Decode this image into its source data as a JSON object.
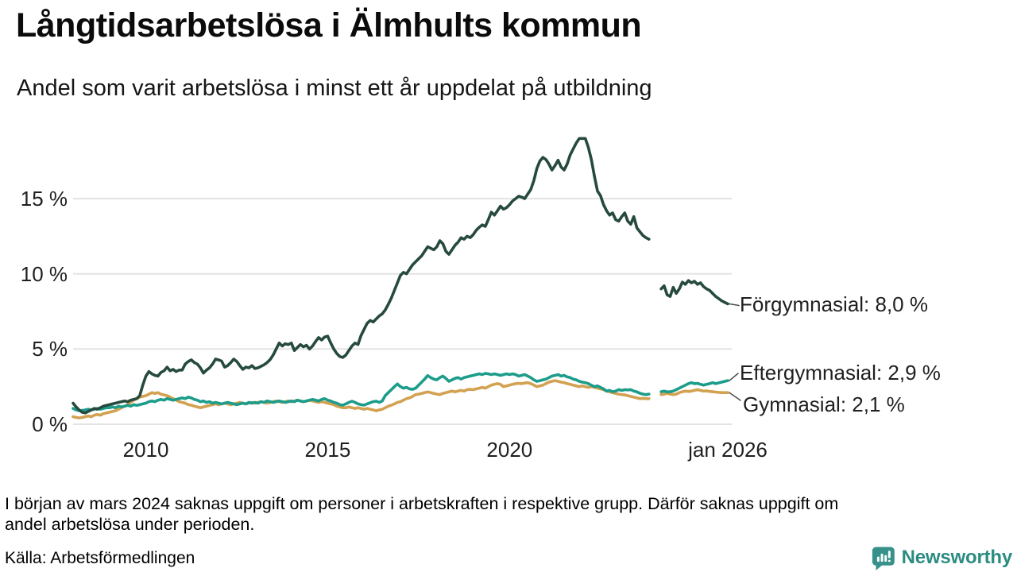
{
  "header": {
    "title": "Långtidsarbetslösa i Älmhults kommun",
    "subtitle": "Andel som varit arbetslösa i minst ett år uppdelat på utbildning"
  },
  "footnote": {
    "line1": "I början av mars 2024 saknas uppgift om personer i arbetskraften i respektive grupp. Därför saknas uppgift om",
    "line2": "andel arbetslösa under perioden."
  },
  "source": {
    "label": "Källa: Arbetsförmedlingen"
  },
  "branding": {
    "name": "Newsworthy",
    "icon": "newsworthy-speech-bubble-bar-chart-icon",
    "icon_color": "#35918a",
    "text_color": "#2b8c82"
  },
  "colors": {
    "grid": "#e3e3e3",
    "axis_text": "#1f1f1f",
    "connector": "#4d4d4d"
  },
  "chart_data": {
    "type": "line",
    "title": "Långtidsarbetslösa i Älmhults kommun",
    "subtitle": "Andel som varit arbetslösa i minst ett år uppdelat på utbildning",
    "unit": "%",
    "x_start_year": 2008.0,
    "x_end_year": 2026.0,
    "x_step_months": 1,
    "ylim": [
      0,
      19.8
    ],
    "grid": "horizontal",
    "legend_position": "right-end-labels",
    "gap_label": "missing data early 2024",
    "x_ticks": [
      {
        "year": 2010,
        "label": "2010"
      },
      {
        "year": 2015,
        "label": "2015"
      },
      {
        "year": 2020,
        "label": "2020"
      },
      {
        "year": 2026,
        "label": "jan 2026"
      }
    ],
    "y_ticks": [
      {
        "value": 0,
        "label": "0 %"
      },
      {
        "value": 5,
        "label": "5 %"
      },
      {
        "value": 10,
        "label": "10 %"
      },
      {
        "value": 15,
        "label": "15 %"
      }
    ],
    "series": [
      {
        "name": "Förgymnasial",
        "color": "#264a3e",
        "end_value": 8.0,
        "end_label": "Förgymnasial: 8,0 %",
        "values": [
          1.4,
          1.15,
          0.95,
          0.8,
          0.75,
          0.85,
          0.95,
          1.05,
          1.0,
          1.1,
          1.2,
          1.25,
          1.3,
          1.35,
          1.4,
          1.45,
          1.5,
          1.55,
          1.5,
          1.6,
          1.65,
          1.7,
          1.9,
          2.6,
          3.2,
          3.5,
          3.35,
          3.25,
          3.2,
          3.45,
          3.55,
          3.8,
          3.55,
          3.65,
          3.5,
          3.6,
          3.6,
          4.0,
          4.17,
          4.28,
          4.1,
          4.0,
          3.75,
          3.4,
          3.6,
          3.75,
          4.0,
          4.33,
          4.28,
          4.2,
          3.8,
          3.9,
          4.1,
          4.33,
          4.17,
          3.9,
          3.65,
          3.8,
          3.75,
          3.9,
          3.7,
          3.75,
          3.85,
          3.95,
          4.1,
          4.3,
          4.6,
          5.0,
          5.4,
          5.2,
          5.35,
          5.3,
          5.4,
          4.9,
          5.1,
          5.3,
          5.15,
          5.25,
          5.0,
          5.2,
          5.5,
          5.76,
          5.6,
          5.8,
          5.86,
          5.4,
          5.0,
          4.7,
          4.5,
          4.44,
          4.6,
          4.9,
          5.2,
          5.4,
          5.3,
          5.9,
          6.3,
          6.7,
          6.9,
          6.8,
          7.0,
          7.2,
          7.34,
          7.6,
          7.97,
          8.4,
          8.9,
          9.4,
          9.9,
          10.1,
          10.0,
          10.3,
          10.6,
          10.8,
          11.0,
          11.2,
          11.5,
          11.8,
          11.7,
          11.6,
          11.8,
          12.2,
          12.0,
          11.5,
          11.3,
          11.6,
          11.9,
          12.1,
          12.4,
          12.3,
          12.5,
          12.4,
          12.6,
          12.9,
          13.1,
          13.25,
          13.15,
          13.6,
          14.1,
          13.9,
          14.2,
          14.5,
          14.3,
          14.4,
          14.6,
          14.84,
          15.0,
          15.16,
          15.1,
          15.0,
          15.3,
          15.6,
          16.2,
          17.0,
          17.5,
          17.74,
          17.6,
          17.3,
          16.9,
          17.2,
          17.55,
          17.1,
          16.9,
          17.3,
          17.9,
          18.3,
          18.7,
          19.0,
          19.0,
          19.0,
          18.4,
          17.6,
          16.5,
          15.5,
          15.2,
          14.6,
          14.2,
          13.9,
          14.05,
          13.6,
          13.5,
          13.8,
          14.05,
          13.5,
          13.3,
          13.8,
          13.05,
          12.8,
          12.55,
          12.4,
          12.3,
          null,
          null,
          null,
          9.0,
          9.2,
          8.6,
          8.5,
          9.1,
          8.7,
          9.0,
          9.45,
          9.3,
          9.55,
          9.4,
          9.5,
          9.3,
          9.4,
          9.15,
          9.0,
          8.9,
          8.7,
          8.5,
          8.35,
          8.2,
          8.1,
          8.0
        ]
      },
      {
        "name": "Eftergymnasial",
        "color": "#1c9c8a",
        "end_value": 2.9,
        "end_label": "Eftergymnasial: 2,9 %",
        "values": [
          1.05,
          0.95,
          0.9,
          0.92,
          0.95,
          1.0,
          0.95,
          1.0,
          1.05,
          1.0,
          1.05,
          1.1,
          1.1,
          1.15,
          1.1,
          1.2,
          1.15,
          1.2,
          1.25,
          1.2,
          1.3,
          1.25,
          1.3,
          1.35,
          1.4,
          1.5,
          1.55,
          1.5,
          1.6,
          1.65,
          1.6,
          1.7,
          1.65,
          1.6,
          1.65,
          1.7,
          1.75,
          1.7,
          1.8,
          1.75,
          1.65,
          1.6,
          1.5,
          1.55,
          1.45,
          1.5,
          1.4,
          1.45,
          1.4,
          1.35,
          1.4,
          1.45,
          1.4,
          1.35,
          1.3,
          1.35,
          1.4,
          1.35,
          1.45,
          1.4,
          1.45,
          1.4,
          1.5,
          1.45,
          1.55,
          1.5,
          1.45,
          1.5,
          1.55,
          1.5,
          1.45,
          1.5,
          1.55,
          1.5,
          1.6,
          1.55,
          1.5,
          1.55,
          1.6,
          1.65,
          1.6,
          1.55,
          1.65,
          1.7,
          1.6,
          1.55,
          1.45,
          1.4,
          1.3,
          1.27,
          1.35,
          1.45,
          1.53,
          1.45,
          1.35,
          1.3,
          1.27,
          1.35,
          1.43,
          1.5,
          1.53,
          1.45,
          1.55,
          1.9,
          2.1,
          2.3,
          2.5,
          2.68,
          2.5,
          2.4,
          2.45,
          2.35,
          2.32,
          2.4,
          2.6,
          2.8,
          3.0,
          3.24,
          3.1,
          3.0,
          2.95,
          3.1,
          3.2,
          3.05,
          2.85,
          2.95,
          3.05,
          3.1,
          3.0,
          3.1,
          3.15,
          3.2,
          3.25,
          3.3,
          3.35,
          3.3,
          3.38,
          3.35,
          3.3,
          3.35,
          3.3,
          3.25,
          3.3,
          3.35,
          3.3,
          3.35,
          3.3,
          3.2,
          3.25,
          3.3,
          3.2,
          3.1,
          2.95,
          2.85,
          2.9,
          2.95,
          3.0,
          3.1,
          3.2,
          3.25,
          3.3,
          3.2,
          3.25,
          3.15,
          3.1,
          3.0,
          2.95,
          2.85,
          2.8,
          2.76,
          2.7,
          2.6,
          2.5,
          2.55,
          2.45,
          2.35,
          2.2,
          2.25,
          2.16,
          2.2,
          2.3,
          2.25,
          2.3,
          2.28,
          2.3,
          2.2,
          2.15,
          2.06,
          2.0,
          1.97,
          2.0,
          null,
          null,
          null,
          2.16,
          2.2,
          2.15,
          2.16,
          2.2,
          2.3,
          2.4,
          2.5,
          2.6,
          2.7,
          2.76,
          2.7,
          2.72,
          2.65,
          2.6,
          2.65,
          2.7,
          2.76,
          2.7,
          2.75,
          2.8,
          2.85,
          2.9
        ]
      },
      {
        "name": "Gymnasial",
        "color": "#d2a151",
        "end_value": 2.1,
        "end_label": "Gymnasial: 2,1 %",
        "values": [
          0.5,
          0.45,
          0.42,
          0.45,
          0.5,
          0.55,
          0.5,
          0.6,
          0.65,
          0.6,
          0.7,
          0.75,
          0.8,
          0.85,
          0.9,
          1.0,
          1.1,
          1.2,
          1.3,
          1.45,
          1.6,
          1.7,
          1.8,
          1.85,
          1.9,
          2.0,
          2.1,
          2.05,
          2.1,
          2.0,
          1.95,
          1.9,
          1.8,
          1.7,
          1.6,
          1.5,
          1.45,
          1.4,
          1.3,
          1.27,
          1.2,
          1.15,
          1.1,
          1.15,
          1.2,
          1.25,
          1.3,
          1.35,
          1.3,
          1.35,
          1.4,
          1.35,
          1.3,
          1.35,
          1.4,
          1.45,
          1.4,
          1.35,
          1.4,
          1.45,
          1.4,
          1.45,
          1.5,
          1.45,
          1.4,
          1.45,
          1.5,
          1.55,
          1.5,
          1.45,
          1.5,
          1.55,
          1.5,
          1.55,
          1.6,
          1.55,
          1.5,
          1.55,
          1.6,
          1.55,
          1.5,
          1.45,
          1.5,
          1.45,
          1.4,
          1.35,
          1.3,
          1.2,
          1.15,
          1.1,
          1.1,
          1.15,
          1.1,
          1.05,
          1.1,
          1.05,
          1.0,
          1.05,
          1.0,
          0.95,
          0.9,
          0.95,
          1.0,
          1.1,
          1.2,
          1.27,
          1.35,
          1.45,
          1.5,
          1.6,
          1.7,
          1.75,
          1.85,
          1.97,
          2.0,
          2.05,
          2.1,
          2.15,
          2.1,
          2.05,
          2.0,
          1.97,
          2.05,
          2.1,
          2.15,
          2.2,
          2.15,
          2.2,
          2.25,
          2.2,
          2.3,
          2.32,
          2.3,
          2.35,
          2.4,
          2.45,
          2.4,
          2.5,
          2.6,
          2.65,
          2.7,
          2.65,
          2.5,
          2.55,
          2.6,
          2.65,
          2.7,
          2.72,
          2.7,
          2.74,
          2.76,
          2.7,
          2.6,
          2.5,
          2.55,
          2.6,
          2.7,
          2.8,
          2.85,
          2.9,
          2.85,
          2.8,
          2.76,
          2.7,
          2.65,
          2.6,
          2.55,
          2.5,
          2.55,
          2.5,
          2.45,
          2.5,
          2.45,
          2.4,
          2.35,
          2.3,
          2.2,
          2.15,
          2.1,
          2.05,
          2.0,
          1.97,
          1.95,
          1.9,
          1.85,
          1.8,
          1.75,
          1.7,
          1.72,
          1.7,
          1.7,
          null,
          null,
          null,
          1.97,
          2.0,
          2.06,
          2.0,
          1.97,
          2.0,
          2.1,
          2.16,
          2.2,
          2.18,
          2.2,
          2.25,
          2.3,
          2.25,
          2.2,
          2.22,
          2.18,
          2.16,
          2.14,
          2.12,
          2.1,
          2.1,
          2.1
        ]
      }
    ]
  }
}
